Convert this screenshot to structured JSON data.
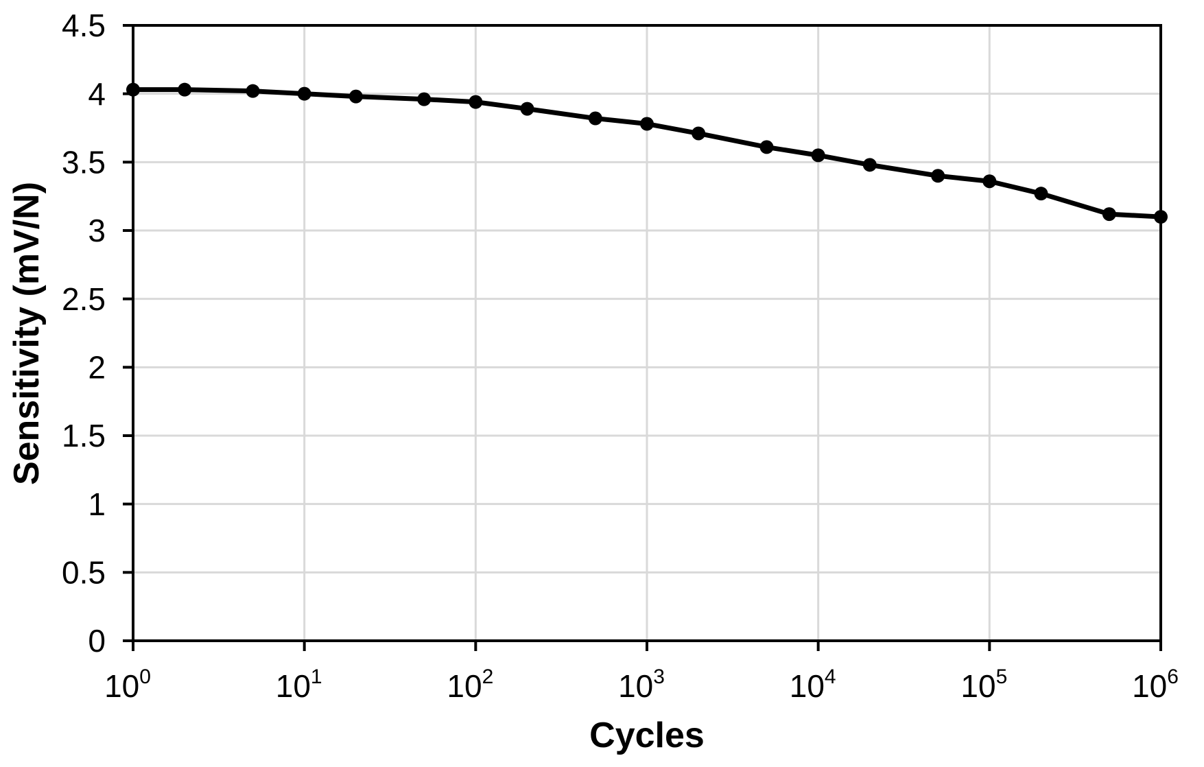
{
  "chart_data": {
    "type": "line",
    "title": "",
    "xlabel": "Cycles",
    "ylabel": "Sensitivity (mV/N)",
    "x_scale": "log10",
    "x": [
      1,
      2,
      5,
      10,
      20,
      50,
      100,
      200,
      500,
      1000,
      2000,
      5000,
      10000,
      20000,
      50000,
      100000,
      200000,
      500000,
      1000000
    ],
    "y": [
      4.03,
      4.03,
      4.02,
      4.0,
      3.98,
      3.96,
      3.94,
      3.89,
      3.82,
      3.78,
      3.71,
      3.61,
      3.55,
      3.48,
      3.4,
      3.36,
      3.27,
      3.12,
      3.1
    ],
    "xlim": [
      1,
      1000000
    ],
    "ylim": [
      0,
      4.5
    ],
    "y_tick_values": [
      0,
      0.5,
      1,
      1.5,
      2,
      2.5,
      3,
      3.5,
      4,
      4.5
    ],
    "y_tick_labels": [
      "0",
      "0.5",
      "1",
      "1.5",
      "2",
      "2.5",
      "3",
      "3.5",
      "4",
      "4.5"
    ],
    "x_tick_base": "10",
    "x_tick_exponents": [
      "0",
      "1",
      "2",
      "3",
      "4",
      "5",
      "6"
    ],
    "grid": true,
    "legend": "none",
    "series_name": "Sensitivity",
    "marker": "circle",
    "colors": {
      "line": "#000000",
      "marker": "#000000",
      "grid": "#d9d9d9",
      "axis": "#000000",
      "text": "#000000",
      "background": "#ffffff"
    }
  }
}
